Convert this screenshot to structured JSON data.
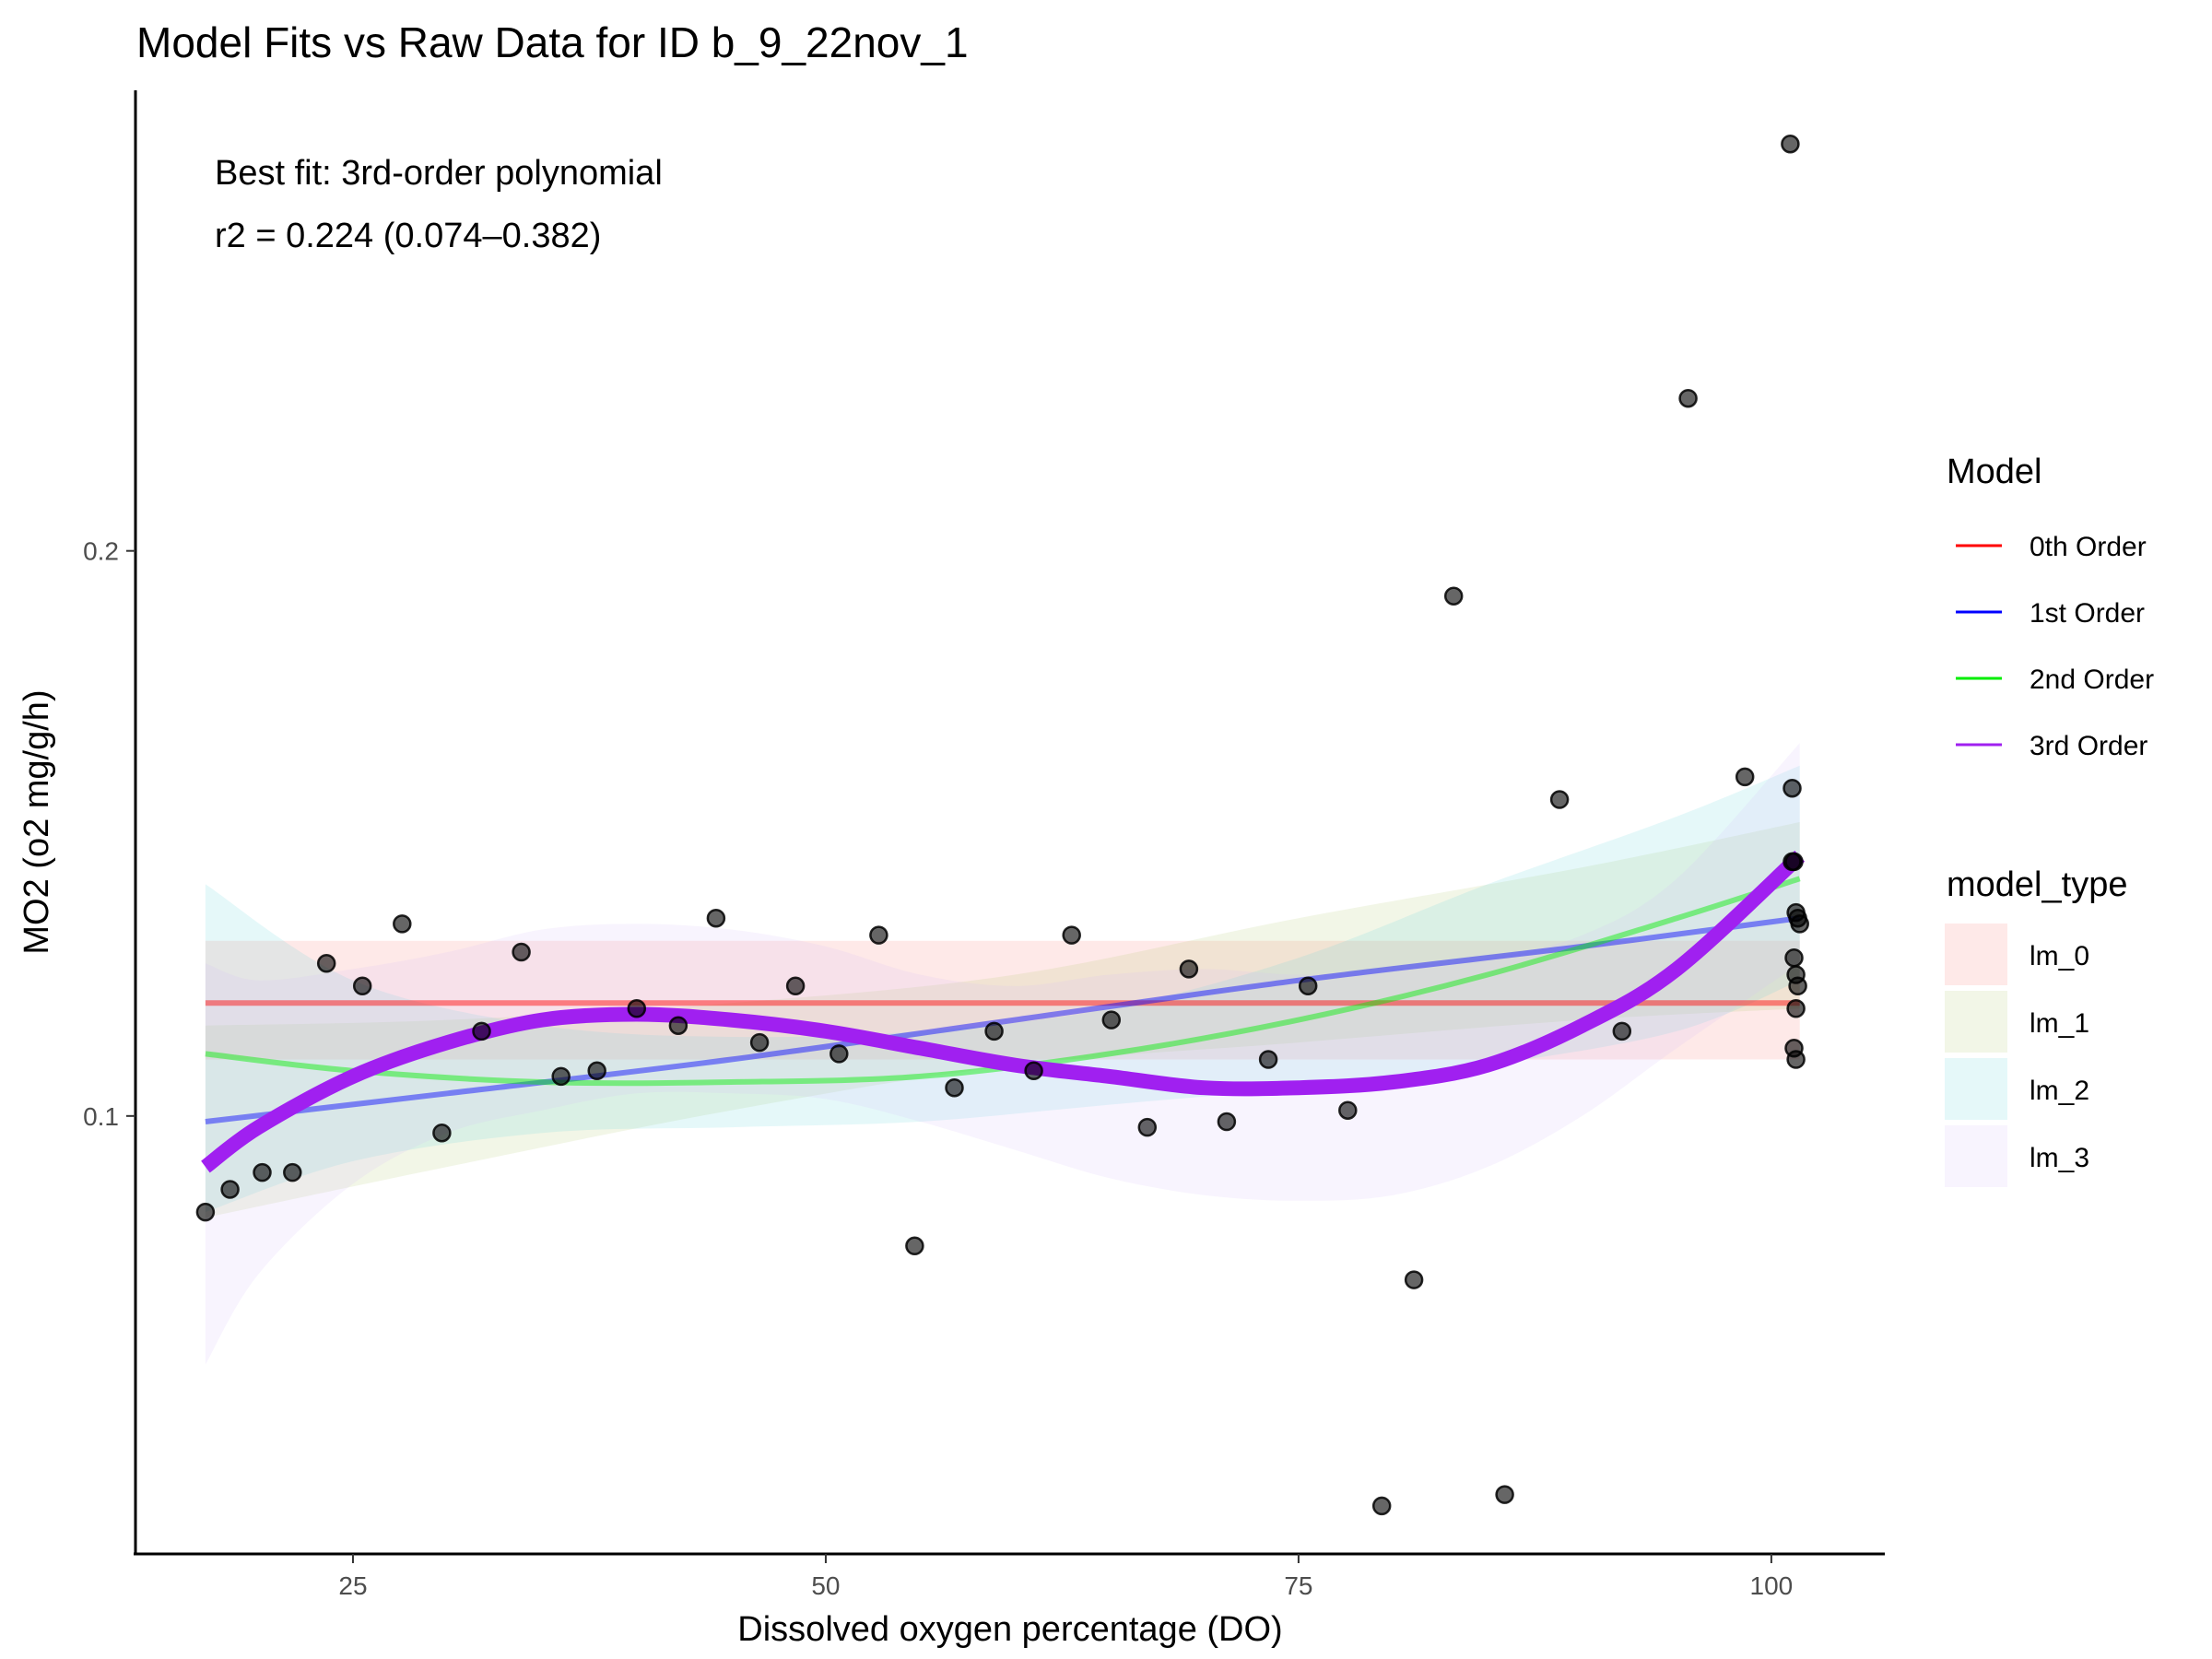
{
  "chart_data": {
    "type": "scatter",
    "title": "Model Fits vs Raw Data for ID b_9_22nov_1",
    "xlabel": "Dissolved oxygen percentage (DO)",
    "ylabel": "MO2 (o2 mg/g/h)",
    "xlim": [
      13.5,
      106
    ],
    "ylim": [
      0.0225,
      0.2815
    ],
    "x_ticks": [
      25,
      50,
      75,
      100
    ],
    "y_ticks": [
      0.1,
      0.2
    ],
    "x_tick_labels": [
      "25",
      "50",
      "75",
      "100"
    ],
    "y_tick_labels": [
      "0.1",
      "0.2"
    ],
    "grid": false,
    "annotations": [
      "Best fit: 3rd-order polynomial",
      "r2 = 0.224 (0.074–0.382)"
    ],
    "points": [
      [
        17.2,
        0.083
      ],
      [
        18.5,
        0.087
      ],
      [
        20.2,
        0.09
      ],
      [
        21.8,
        0.09
      ],
      [
        23.6,
        0.127
      ],
      [
        25.5,
        0.123
      ],
      [
        27.6,
        0.134
      ],
      [
        29.7,
        0.097
      ],
      [
        31.8,
        0.115
      ],
      [
        33.9,
        0.129
      ],
      [
        36.0,
        0.107
      ],
      [
        37.9,
        0.108
      ],
      [
        40.0,
        0.119
      ],
      [
        42.2,
        0.116
      ],
      [
        44.2,
        0.135
      ],
      [
        46.5,
        0.113
      ],
      [
        48.4,
        0.123
      ],
      [
        50.7,
        0.111
      ],
      [
        52.8,
        0.132
      ],
      [
        54.7,
        0.077
      ],
      [
        56.8,
        0.105
      ],
      [
        58.9,
        0.115
      ],
      [
        61.0,
        0.108
      ],
      [
        63.0,
        0.132
      ],
      [
        65.1,
        0.117
      ],
      [
        67.0,
        0.098
      ],
      [
        69.2,
        0.126
      ],
      [
        71.2,
        0.099
      ],
      [
        73.4,
        0.11
      ],
      [
        75.5,
        0.123
      ],
      [
        77.6,
        0.101
      ],
      [
        79.4,
        0.031
      ],
      [
        81.1,
        0.071
      ],
      [
        83.2,
        0.192
      ],
      [
        85.9,
        0.033
      ],
      [
        88.8,
        0.156
      ],
      [
        92.1,
        0.115
      ],
      [
        95.6,
        0.227
      ],
      [
        98.6,
        0.16
      ],
      [
        101.0,
        0.272
      ],
      [
        101.1,
        0.158
      ],
      [
        101.1,
        0.145
      ],
      [
        101.2,
        0.145
      ],
      [
        101.3,
        0.136
      ],
      [
        101.4,
        0.135
      ],
      [
        101.5,
        0.134
      ],
      [
        101.2,
        0.128
      ],
      [
        101.3,
        0.125
      ],
      [
        101.4,
        0.123
      ],
      [
        101.3,
        0.119
      ],
      [
        101.2,
        0.112
      ],
      [
        101.3,
        0.11
      ]
    ],
    "series": [
      {
        "name": "0th Order",
        "model_type": "lm_0",
        "color": "#ff0000",
        "band_color": "#f8766d",
        "x": [
          17.2,
          101.5
        ],
        "fit": [
          0.12,
          0.12
        ],
        "lower": [
          0.11,
          0.11
        ],
        "upper": [
          0.131,
          0.131
        ]
      },
      {
        "name": "1st Order",
        "model_type": "lm_1",
        "color": "#0000ff",
        "band_color": "#b0c46a",
        "x": [
          17.2,
          30,
          45,
          60,
          75,
          90,
          101.5
        ],
        "fit": [
          0.099,
          0.104,
          0.11,
          0.117,
          0.124,
          0.13,
          0.135
        ],
        "lower": [
          0.082,
          0.091,
          0.101,
          0.109,
          0.113,
          0.117,
          0.119
        ],
        "upper": [
          0.116,
          0.117,
          0.12,
          0.125,
          0.135,
          0.144,
          0.152
        ]
      },
      {
        "name": "2nd Order",
        "model_type": "lm_2",
        "color": "#00ee00",
        "band_color": "#5fd3d8",
        "x": [
          17.2,
          25,
          35,
          45,
          55,
          65,
          75,
          85,
          95,
          101.5
        ],
        "fit": [
          0.111,
          0.108,
          0.106,
          0.106,
          0.107,
          0.111,
          0.117,
          0.125,
          0.135,
          0.142
        ],
        "lower": [
          0.083,
          0.092,
          0.097,
          0.098,
          0.099,
          0.102,
          0.105,
          0.109,
          0.115,
          0.124
        ],
        "upper": [
          0.141,
          0.124,
          0.116,
          0.114,
          0.115,
          0.119,
          0.128,
          0.141,
          0.153,
          0.162
        ]
      },
      {
        "name": "3rd Order",
        "model_type": "lm_3",
        "color": "#a020f0",
        "band_color": "#d5b8f7",
        "x": [
          17.2,
          20,
          25,
          30,
          35,
          40,
          45,
          50,
          55,
          60,
          65,
          70,
          75,
          80,
          85,
          90,
          95,
          101.5
        ],
        "fit": [
          0.091,
          0.098,
          0.107,
          0.113,
          0.117,
          0.118,
          0.117,
          0.115,
          0.112,
          0.109,
          0.107,
          0.105,
          0.105,
          0.106,
          0.109,
          0.116,
          0.126,
          0.146
        ],
        "lower": [
          0.056,
          0.072,
          0.088,
          0.097,
          0.101,
          0.104,
          0.104,
          0.103,
          0.099,
          0.094,
          0.089,
          0.086,
          0.085,
          0.086,
          0.091,
          0.1,
          0.112,
          0.127
        ],
        "upper": [
          0.127,
          0.124,
          0.126,
          0.129,
          0.133,
          0.134,
          0.133,
          0.13,
          0.125,
          0.123,
          0.125,
          0.126,
          0.125,
          0.126,
          0.128,
          0.132,
          0.142,
          0.166
        ]
      }
    ],
    "legend": {
      "position": "right",
      "model_title": "Model",
      "model_items": [
        "0th Order",
        "1st Order",
        "2nd Order",
        "3rd Order"
      ],
      "model_type_title": "model_type",
      "model_type_items": [
        "lm_0",
        "lm_1",
        "lm_2",
        "lm_3"
      ]
    }
  }
}
